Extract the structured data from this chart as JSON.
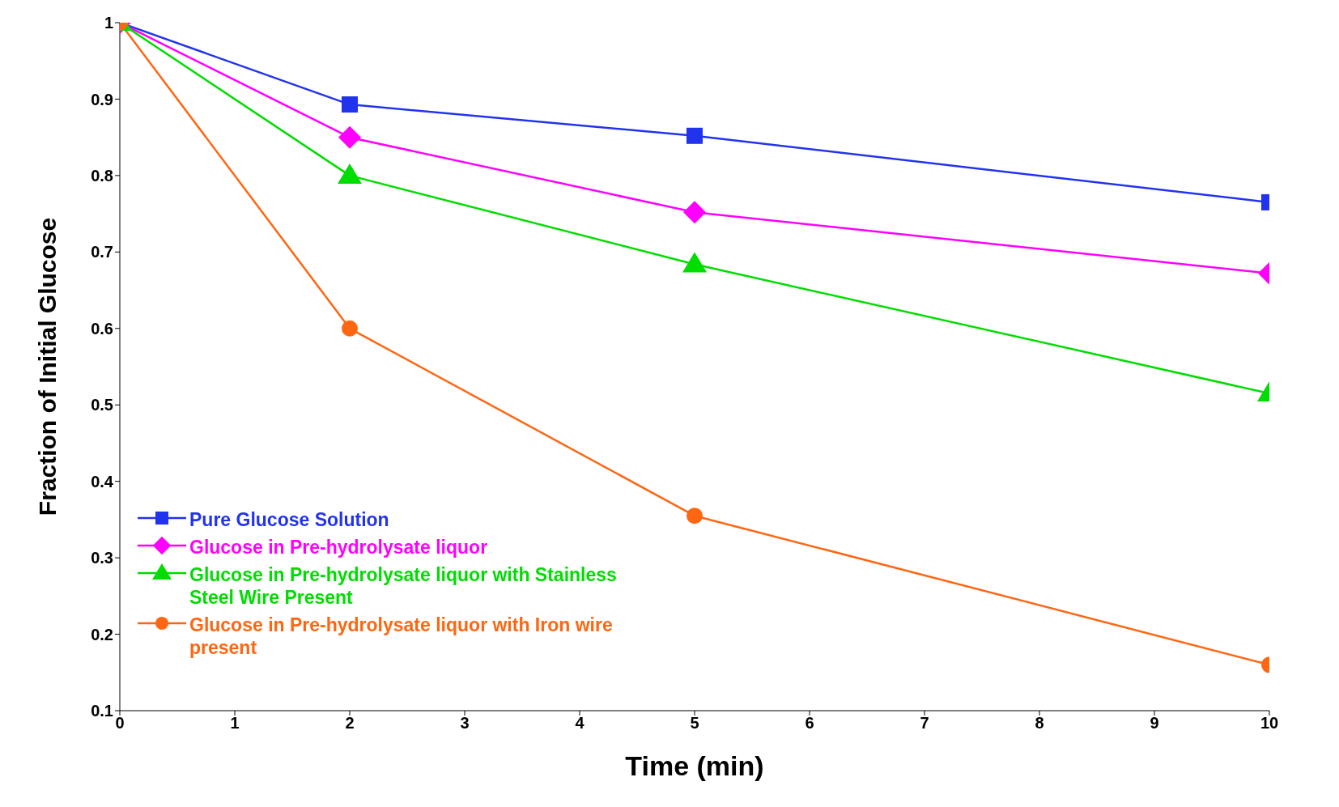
{
  "chart_data": {
    "type": "line",
    "xlabel": "Time (min)",
    "ylabel": "Fraction of Initial Glucose",
    "x": [
      0,
      2,
      5,
      10
    ],
    "xlim": [
      0,
      10
    ],
    "xticks": [
      0,
      1,
      2,
      3,
      4,
      5,
      6,
      7,
      8,
      9,
      10
    ],
    "ylim": [
      0.1,
      1
    ],
    "yticks": [
      0.1,
      0.2,
      0.3,
      0.4,
      0.5,
      0.6,
      0.7,
      0.8,
      0.9,
      1
    ],
    "legend": "bottom left",
    "series": [
      {
        "name": "Pure Glucose Solution",
        "color": "#2233ee",
        "marker": "square",
        "values": [
          1,
          0.893,
          0.852,
          0.765
        ]
      },
      {
        "name": "Glucose in Pre-hydrolysate liquor",
        "color": "#ff00ff",
        "marker": "diamond",
        "values": [
          1,
          0.85,
          0.752,
          0.672
        ]
      },
      {
        "name": "Glucose in Pre-hydrolysate liquor with Stainless Steel Wire Present",
        "color": "#00dd00",
        "marker": "triangle",
        "values": [
          1,
          0.8,
          0.684,
          0.515
        ]
      },
      {
        "name": "Glucose in Pre-hydrolysate liquor with Iron wire present",
        "color": "#ff6611",
        "marker": "circle",
        "values": [
          1,
          0.6,
          0.355,
          0.16
        ]
      }
    ]
  }
}
